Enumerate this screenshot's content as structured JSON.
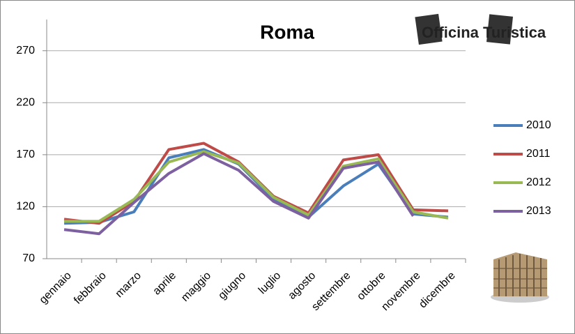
{
  "chart_data": {
    "type": "line",
    "title": "Roma",
    "logo": "Officina Turistica",
    "categories": [
      "gennaio",
      "febbraio",
      "marzo",
      "aprile",
      "maggio",
      "giugno",
      "luglio",
      "agosto",
      "settembre",
      "ottobre",
      "novembre",
      "dicembre"
    ],
    "series": [
      {
        "name": "2010",
        "color": "#4a7ebb",
        "values": [
          104,
          105,
          115,
          167,
          175,
          161,
          127,
          110,
          140,
          161,
          113,
          110
        ]
      },
      {
        "name": "2011",
        "color": "#be4b48",
        "values": [
          108,
          104,
          125,
          175,
          181,
          163,
          130,
          114,
          165,
          170,
          117,
          116
        ]
      },
      {
        "name": "2012",
        "color": "#98b954",
        "values": [
          106,
          106,
          127,
          163,
          173,
          162,
          129,
          112,
          159,
          166,
          115,
          109
        ]
      },
      {
        "name": "2013",
        "color": "#7d60a0",
        "values": [
          98,
          94,
          124,
          152,
          171,
          155,
          125,
          109,
          157,
          163,
          111,
          null
        ]
      }
    ],
    "ylim": [
      70,
      300
    ],
    "yticks": [
      70,
      120,
      170,
      220,
      270
    ],
    "grid": true
  }
}
